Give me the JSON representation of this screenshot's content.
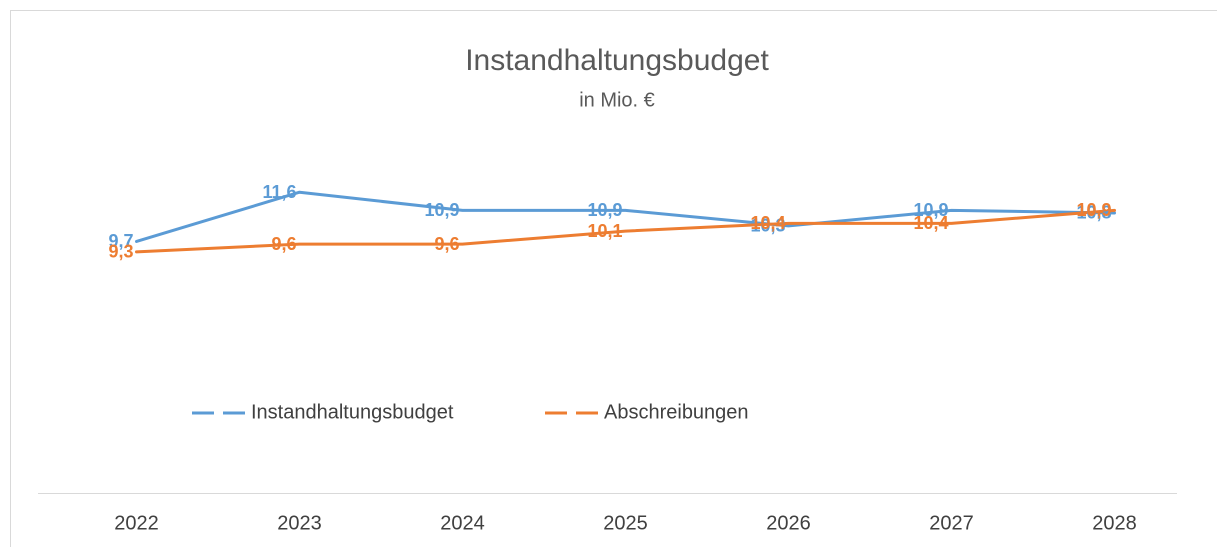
{
  "chart_data": {
    "type": "line",
    "title": "Instandhaltungsbudget",
    "subtitle": "in Mio. €",
    "categories": [
      "2022",
      "2023",
      "2024",
      "2025",
      "2026",
      "2027",
      "2028"
    ],
    "ylim": [
      0,
      14
    ],
    "legend": "bottom",
    "series": [
      {
        "name": "Instandhaltungsbudget",
        "color": "#5b9bd5",
        "values": [
          9.7,
          11.6,
          10.9,
          10.9,
          10.3,
          10.9,
          10.8
        ],
        "value_labels": [
          "9,7",
          "11,6",
          "10,9",
          "10,9",
          "10,3",
          "10,9",
          "10,8"
        ]
      },
      {
        "name": "Abschreibungen",
        "color": "#ed7d31",
        "values": [
          9.3,
          9.6,
          9.6,
          10.1,
          10.4,
          10.4,
          10.9
        ],
        "value_labels": [
          "9,3",
          "9,6",
          "9,6",
          "10,1",
          "10,4",
          "10,4",
          "10,9"
        ]
      }
    ]
  }
}
